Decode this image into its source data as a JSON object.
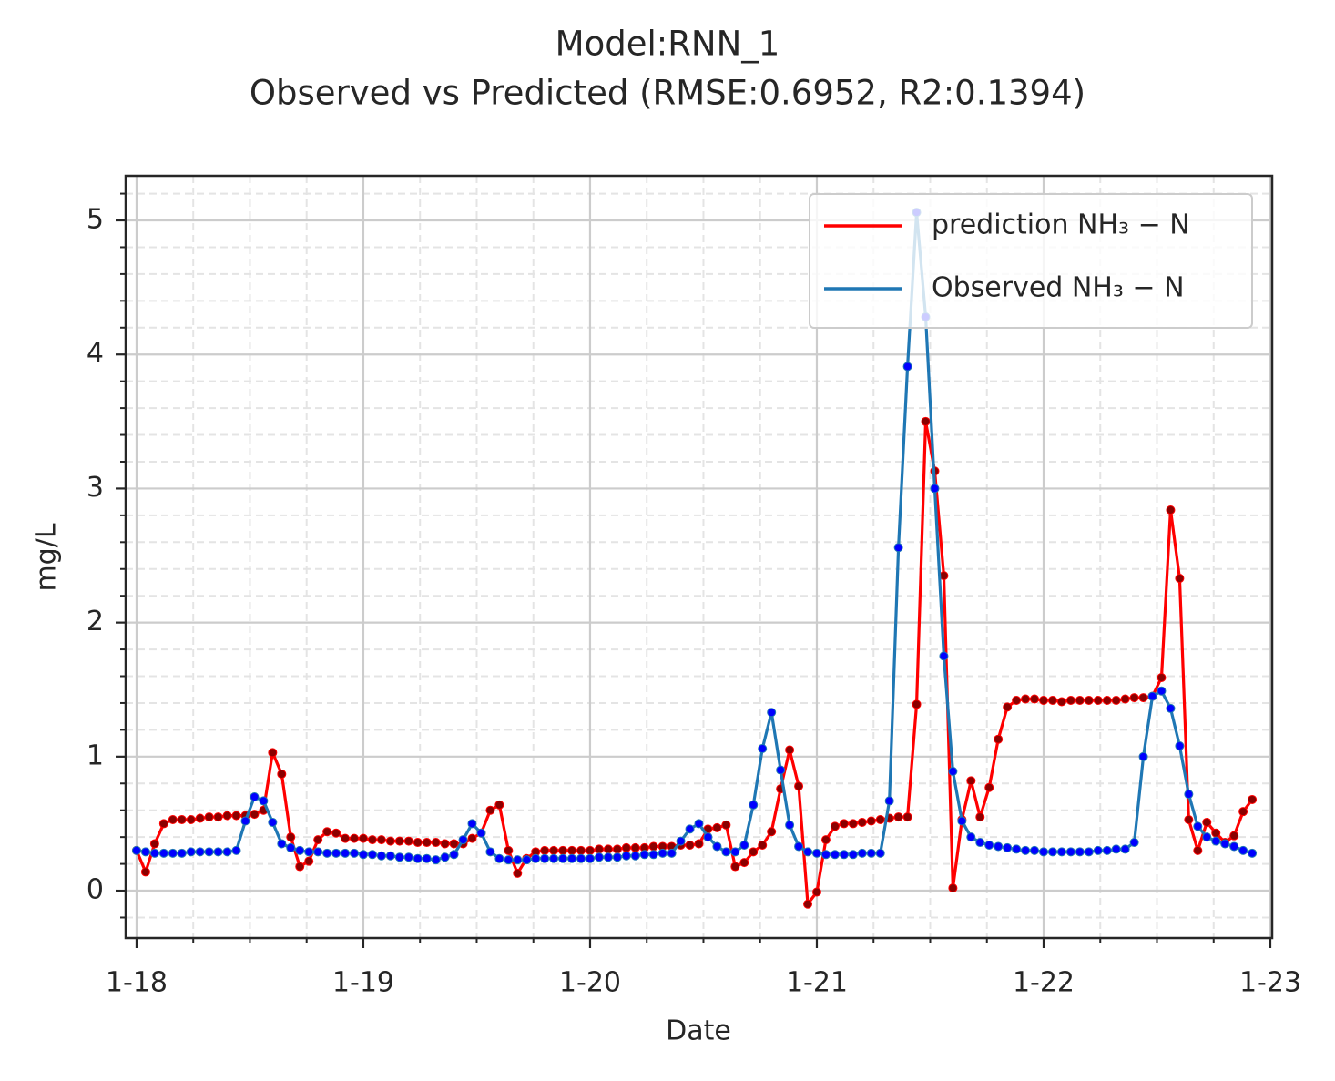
{
  "chart_data": {
    "type": "line",
    "title": "Model:RNN_1",
    "subtitle": "Observed vs Predicted (RMSE:0.6952, R2:0.1394)",
    "x_label": "Date",
    "y_label": "mg/L",
    "xlim": [
      17.952,
      23.008
    ],
    "ylim": [
      -0.353,
      5.333
    ],
    "xticks": [
      {
        "value": 18,
        "label": "1-18"
      },
      {
        "value": 19,
        "label": "1-19"
      },
      {
        "value": 20,
        "label": "1-20"
      },
      {
        "value": 21,
        "label": "1-21"
      },
      {
        "value": 22,
        "label": "1-22"
      },
      {
        "value": 23,
        "label": "1-23"
      }
    ],
    "yticks": [
      0,
      1,
      2,
      3,
      4,
      5
    ],
    "minor_xticks": [
      18.25,
      18.5,
      18.75,
      19.25,
      19.5,
      19.75,
      20.25,
      20.5,
      20.75,
      21.25,
      21.5,
      21.75,
      22.25,
      22.5,
      22.75
    ],
    "minor_yticks": [
      -0.2,
      0.2,
      0.4,
      0.6,
      0.8,
      1.2,
      1.4,
      1.6,
      1.8,
      2.2,
      2.4,
      2.6,
      2.8,
      3.2,
      3.4,
      3.6,
      3.8,
      4.2,
      4.4,
      4.6,
      4.8,
      5.2
    ],
    "grid": true,
    "legend": "upper right",
    "x": [
      18,
      18.04,
      18.08,
      18.12,
      18.16,
      18.2,
      18.24,
      18.28,
      18.32,
      18.36,
      18.4,
      18.44,
      18.48,
      18.52,
      18.56,
      18.6,
      18.64,
      18.68,
      18.72,
      18.76,
      18.8,
      18.84,
      18.88,
      18.92,
      18.96,
      19,
      19.04,
      19.08,
      19.12,
      19.16,
      19.2,
      19.24,
      19.28,
      19.32,
      19.36,
      19.4,
      19.44,
      19.48,
      19.52,
      19.56,
      19.6,
      19.64,
      19.68,
      19.72,
      19.76,
      19.8,
      19.84,
      19.88,
      19.92,
      19.96,
      20,
      20.04,
      20.08,
      20.12,
      20.16,
      20.2,
      20.24,
      20.28,
      20.32,
      20.36,
      20.4,
      20.44,
      20.48,
      20.52,
      20.56,
      20.6,
      20.64,
      20.68,
      20.72,
      20.76,
      20.8,
      20.84,
      20.88,
      20.92,
      20.96,
      21,
      21.04,
      21.08,
      21.12,
      21.16,
      21.2,
      21.24,
      21.28,
      21.32,
      21.36,
      21.4,
      21.44,
      21.48,
      21.52,
      21.56,
      21.6,
      21.64,
      21.68,
      21.72,
      21.76,
      21.8,
      21.84,
      21.88,
      21.92,
      21.96,
      22,
      22.04,
      22.08,
      22.12,
      22.16,
      22.2,
      22.24,
      22.28,
      22.32,
      22.36,
      22.4,
      22.44,
      22.48,
      22.52,
      22.56,
      22.6,
      22.64,
      22.68,
      22.72,
      22.76,
      22.8,
      22.84,
      22.88,
      22.92
    ],
    "series": [
      {
        "name": "prediction NH₃ − N",
        "color": "#ff0000",
        "marker_color": "#8b0000",
        "values": [
          0.3,
          0.14,
          0.35,
          0.5,
          0.53,
          0.53,
          0.53,
          0.54,
          0.55,
          0.55,
          0.56,
          0.56,
          0.56,
          0.57,
          0.6,
          1.03,
          0.87,
          0.4,
          0.18,
          0.22,
          0.38,
          0.44,
          0.43,
          0.39,
          0.39,
          0.39,
          0.38,
          0.38,
          0.37,
          0.37,
          0.37,
          0.36,
          0.36,
          0.36,
          0.35,
          0.35,
          0.35,
          0.39,
          0.43,
          0.6,
          0.64,
          0.3,
          0.13,
          0.24,
          0.29,
          0.3,
          0.3,
          0.3,
          0.3,
          0.3,
          0.3,
          0.31,
          0.31,
          0.31,
          0.32,
          0.32,
          0.32,
          0.33,
          0.33,
          0.33,
          0.34,
          0.34,
          0.35,
          0.46,
          0.47,
          0.49,
          0.18,
          0.21,
          0.29,
          0.34,
          0.44,
          0.76,
          1.05,
          0.78,
          -0.1,
          -0.01,
          0.38,
          0.48,
          0.5,
          0.5,
          0.51,
          0.52,
          0.53,
          0.54,
          0.55,
          0.55,
          1.39,
          3.5,
          3.13,
          2.35,
          0.02,
          0.53,
          0.82,
          0.55,
          0.77,
          1.13,
          1.37,
          1.42,
          1.43,
          1.43,
          1.42,
          1.42,
          1.41,
          1.42,
          1.42,
          1.42,
          1.42,
          1.42,
          1.42,
          1.43,
          1.44,
          1.44,
          1.45,
          1.59,
          2.84,
          2.33,
          0.53,
          0.3,
          0.51,
          0.43,
          0.36,
          0.41,
          0.59,
          0.68
        ]
      },
      {
        "name": "Observed NH₃ − N",
        "color": "#1f77b4",
        "marker_color": "#0000ff",
        "values": [
          0.3,
          0.29,
          0.28,
          0.28,
          0.28,
          0.28,
          0.29,
          0.29,
          0.29,
          0.29,
          0.29,
          0.3,
          0.52,
          0.7,
          0.67,
          0.51,
          0.35,
          0.32,
          0.3,
          0.29,
          0.29,
          0.28,
          0.28,
          0.28,
          0.28,
          0.27,
          0.27,
          0.26,
          0.26,
          0.25,
          0.25,
          0.24,
          0.24,
          0.23,
          0.25,
          0.27,
          0.38,
          0.5,
          0.43,
          0.29,
          0.24,
          0.23,
          0.23,
          0.23,
          0.24,
          0.24,
          0.24,
          0.24,
          0.24,
          0.24,
          0.24,
          0.25,
          0.25,
          0.25,
          0.26,
          0.26,
          0.27,
          0.27,
          0.28,
          0.28,
          0.37,
          0.46,
          0.5,
          0.4,
          0.33,
          0.29,
          0.29,
          0.34,
          0.64,
          1.06,
          1.33,
          0.9,
          0.49,
          0.33,
          0.29,
          0.28,
          0.27,
          0.27,
          0.27,
          0.27,
          0.28,
          0.28,
          0.28,
          0.67,
          2.56,
          3.91,
          5.06,
          4.28,
          3.0,
          1.75,
          0.89,
          0.52,
          0.4,
          0.36,
          0.34,
          0.33,
          0.32,
          0.31,
          0.3,
          0.3,
          0.29,
          0.29,
          0.29,
          0.29,
          0.29,
          0.29,
          0.3,
          0.3,
          0.31,
          0.31,
          0.36,
          1.0,
          1.45,
          1.49,
          1.36,
          1.08,
          0.72,
          0.48,
          0.4,
          0.37,
          0.35,
          0.33,
          0.3,
          0.28
        ]
      }
    ]
  }
}
